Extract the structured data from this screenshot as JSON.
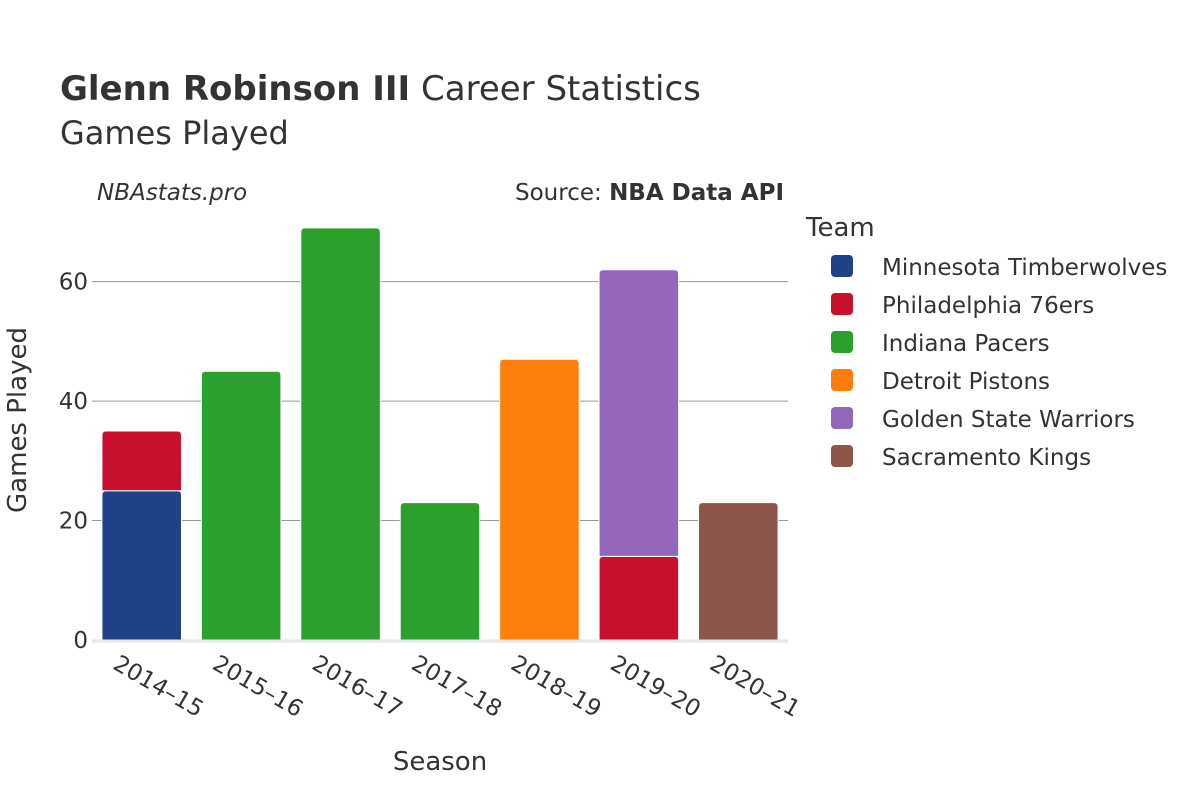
{
  "header": {
    "title_bold": "Glenn Robinson III",
    "title_rest": "Career Statistics",
    "subtitle": "Games Played"
  },
  "credits": {
    "site": "NBAstats.pro",
    "source_prefix": "Source: ",
    "source_name": "NBA Data API"
  },
  "chart_data": {
    "type": "bar",
    "stacked": true,
    "title": "Glenn Robinson III Career Statistics",
    "subtitle": "Games Played",
    "xlabel": "Season",
    "ylabel": "Games Played",
    "categories": [
      "2014–15",
      "2015–16",
      "2016–17",
      "2017–18",
      "2018–19",
      "2019–20",
      "2020–21"
    ],
    "ylim": [
      0,
      72
    ],
    "yticks": [
      0,
      20,
      40,
      60
    ],
    "grid": true,
    "legend_title": "Team",
    "legend_position": "right",
    "series": [
      {
        "name": "Minnesota Timberwolves",
        "color": "#1f4287",
        "values": [
          25,
          0,
          0,
          0,
          0,
          0,
          0
        ]
      },
      {
        "name": "Philadelphia 76ers",
        "color": "#c8102e",
        "values": [
          10,
          0,
          0,
          0,
          0,
          14,
          0
        ]
      },
      {
        "name": "Indiana Pacers",
        "color": "#2ca02c",
        "values": [
          0,
          45,
          69,
          23,
          0,
          0,
          0
        ]
      },
      {
        "name": "Detroit Pistons",
        "color": "#ff7f0e",
        "values": [
          0,
          0,
          0,
          0,
          47,
          0,
          0
        ]
      },
      {
        "name": "Golden State Warriors",
        "color": "#9467bd",
        "values": [
          0,
          0,
          0,
          0,
          0,
          48,
          0
        ]
      },
      {
        "name": "Sacramento Kings",
        "color": "#8c564b",
        "values": [
          0,
          0,
          0,
          0,
          0,
          0,
          23
        ]
      }
    ]
  }
}
